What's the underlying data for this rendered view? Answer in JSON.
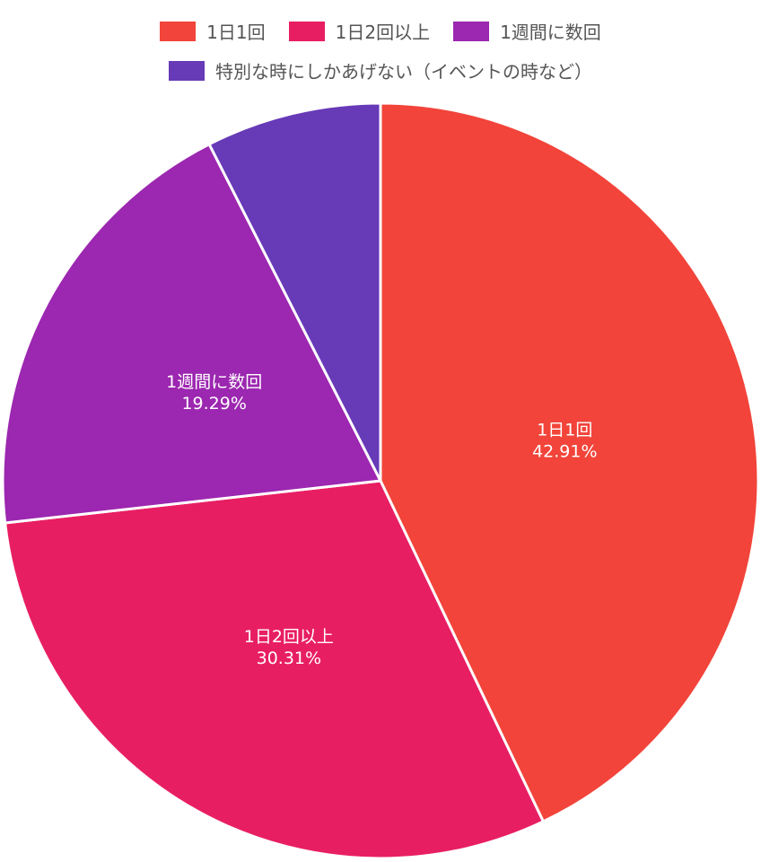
{
  "chart_data": {
    "type": "pie",
    "categories": [
      "1日1回",
      "1日2回以上",
      "1週間に数回",
      "特別な時にしかあげない（イベントの時など）"
    ],
    "values": [
      42.91,
      30.31,
      19.29,
      7.49
    ],
    "value_labels": [
      "42.91%",
      "30.31%",
      "19.29%",
      ""
    ],
    "colors": [
      "#f2443a",
      "#e81e63",
      "#9c27b0",
      "#673ab7"
    ],
    "legend": {
      "position": "top"
    },
    "start": "top, clockwise"
  }
}
